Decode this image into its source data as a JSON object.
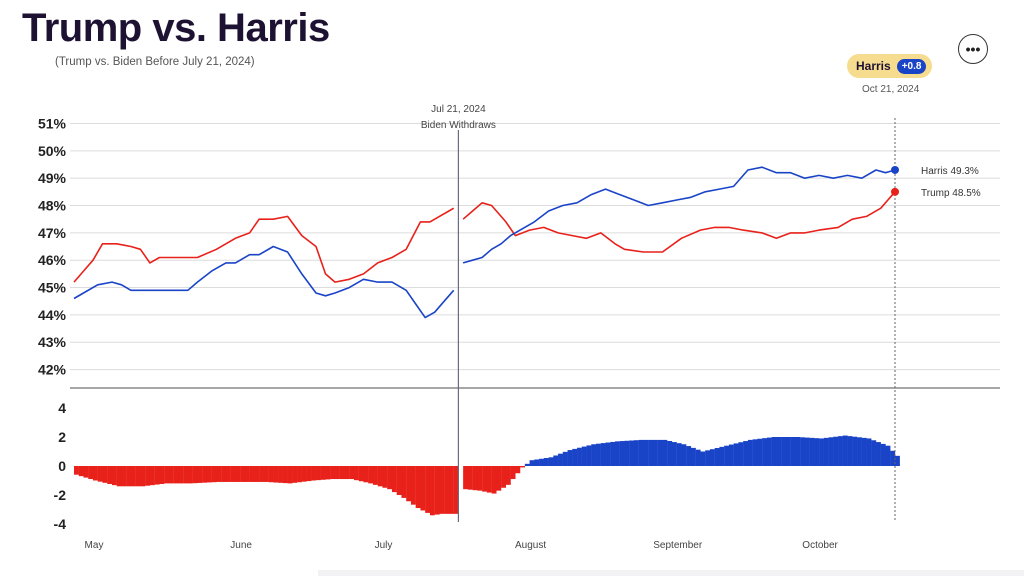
{
  "header": {
    "title": "Trump vs. Harris",
    "subtitle": "(Trump vs. Biden Before July 21, 2024)",
    "more_label": "•••"
  },
  "badge": {
    "name": "Harris",
    "value": "+0.8",
    "date": "Oct 21, 2024"
  },
  "colors": {
    "dem": "#1a44c7",
    "rep": "#e8211b",
    "annotation": "#6a6a80",
    "grid": "#dcdcdc",
    "axis": "#888888"
  },
  "chart_data": [
    {
      "type": "line",
      "x_unit": "date",
      "x_start": "2024-05-01",
      "y_ticks": [
        "51%",
        "50%",
        "49%",
        "48%",
        "47%",
        "46%",
        "45%",
        "44%",
        "43%",
        "42%"
      ],
      "ylim": [
        41.4,
        51.2
      ],
      "x_ticks": [
        {
          "label": "May",
          "date": "2024-05-01"
        },
        {
          "label": "June",
          "date": "2024-06-01"
        },
        {
          "label": "July",
          "date": "2024-07-01"
        },
        {
          "label": "August",
          "date": "2024-08-01"
        },
        {
          "label": "September",
          "date": "2024-09-01"
        },
        {
          "label": "October",
          "date": "2024-10-01"
        }
      ],
      "annotation": {
        "date": "2024-07-21",
        "line1": "Jul 21, 2024",
        "line2": "Biden Withdraws"
      },
      "series": [
        {
          "name": "Trump",
          "end_label": "Trump 48.5%",
          "party": "rep",
          "segments": [
            [
              [
                "2024-05-01",
                45.2
              ],
              [
                "2024-05-03",
                45.6
              ],
              [
                "2024-05-05",
                46.0
              ],
              [
                "2024-05-07",
                46.6
              ],
              [
                "2024-05-10",
                46.6
              ],
              [
                "2024-05-13",
                46.5
              ],
              [
                "2024-05-15",
                46.4
              ],
              [
                "2024-05-17",
                45.9
              ],
              [
                "2024-05-19",
                46.1
              ],
              [
                "2024-05-23",
                46.1
              ],
              [
                "2024-05-27",
                46.1
              ],
              [
                "2024-05-31",
                46.4
              ],
              [
                "2024-06-04",
                46.8
              ],
              [
                "2024-06-07",
                47.0
              ],
              [
                "2024-06-09",
                47.5
              ],
              [
                "2024-06-12",
                47.5
              ],
              [
                "2024-06-15",
                47.6
              ],
              [
                "2024-06-18",
                46.9
              ],
              [
                "2024-06-21",
                46.5
              ],
              [
                "2024-06-23",
                45.5
              ],
              [
                "2024-06-25",
                45.2
              ],
              [
                "2024-06-28",
                45.3
              ],
              [
                "2024-07-01",
                45.5
              ],
              [
                "2024-07-04",
                45.9
              ],
              [
                "2024-07-07",
                46.1
              ],
              [
                "2024-07-10",
                46.4
              ],
              [
                "2024-07-13",
                47.4
              ],
              [
                "2024-07-15",
                47.4
              ],
              [
                "2024-07-17",
                47.6
              ],
              [
                "2024-07-19",
                47.8
              ],
              [
                "2024-07-20",
                47.9
              ]
            ],
            [
              [
                "2024-07-22",
                47.5
              ],
              [
                "2024-07-24",
                47.8
              ],
              [
                "2024-07-26",
                48.1
              ],
              [
                "2024-07-28",
                48.0
              ],
              [
                "2024-07-30",
                47.6
              ],
              [
                "2024-07-31",
                47.4
              ],
              [
                "2024-08-02",
                46.9
              ],
              [
                "2024-08-05",
                47.1
              ],
              [
                "2024-08-08",
                47.2
              ],
              [
                "2024-08-11",
                47.0
              ],
              [
                "2024-08-14",
                46.9
              ],
              [
                "2024-08-17",
                46.8
              ],
              [
                "2024-08-20",
                47.0
              ],
              [
                "2024-08-23",
                46.6
              ],
              [
                "2024-08-25",
                46.4
              ],
              [
                "2024-08-29",
                46.3
              ],
              [
                "2024-09-02",
                46.3
              ],
              [
                "2024-09-06",
                46.8
              ],
              [
                "2024-09-10",
                47.1
              ],
              [
                "2024-09-13",
                47.2
              ],
              [
                "2024-09-16",
                47.2
              ],
              [
                "2024-09-19",
                47.1
              ],
              [
                "2024-09-23",
                47.0
              ],
              [
                "2024-09-26",
                46.8
              ],
              [
                "2024-09-29",
                47.0
              ],
              [
                "2024-10-02",
                47.0
              ],
              [
                "2024-10-05",
                47.1
              ],
              [
                "2024-10-09",
                47.2
              ],
              [
                "2024-10-12",
                47.5
              ],
              [
                "2024-10-15",
                47.6
              ],
              [
                "2024-10-18",
                47.9
              ],
              [
                "2024-10-21",
                48.5
              ]
            ]
          ]
        },
        {
          "name": "Harris",
          "end_label": "Harris 49.3%",
          "party": "dem",
          "segments": [
            [
              [
                "2024-05-01",
                44.6
              ],
              [
                "2024-05-03",
                44.8
              ],
              [
                "2024-05-06",
                45.1
              ],
              [
                "2024-05-09",
                45.2
              ],
              [
                "2024-05-11",
                45.1
              ],
              [
                "2024-05-13",
                44.9
              ],
              [
                "2024-05-17",
                44.9
              ],
              [
                "2024-05-21",
                44.9
              ],
              [
                "2024-05-25",
                44.9
              ],
              [
                "2024-05-27",
                45.2
              ],
              [
                "2024-05-30",
                45.6
              ],
              [
                "2024-06-02",
                45.9
              ],
              [
                "2024-06-04",
                45.9
              ],
              [
                "2024-06-07",
                46.2
              ],
              [
                "2024-06-09",
                46.2
              ],
              [
                "2024-06-12",
                46.5
              ],
              [
                "2024-06-15",
                46.3
              ],
              [
                "2024-06-18",
                45.5
              ],
              [
                "2024-06-21",
                44.8
              ],
              [
                "2024-06-23",
                44.7
              ],
              [
                "2024-06-25",
                44.8
              ],
              [
                "2024-06-28",
                45.0
              ],
              [
                "2024-07-01",
                45.3
              ],
              [
                "2024-07-04",
                45.2
              ],
              [
                "2024-07-07",
                45.2
              ],
              [
                "2024-07-10",
                44.9
              ],
              [
                "2024-07-12",
                44.4
              ],
              [
                "2024-07-14",
                43.9
              ],
              [
                "2024-07-16",
                44.1
              ],
              [
                "2024-07-18",
                44.5
              ],
              [
                "2024-07-20",
                44.9
              ]
            ],
            [
              [
                "2024-07-22",
                45.9
              ],
              [
                "2024-07-24",
                46.0
              ],
              [
                "2024-07-26",
                46.1
              ],
              [
                "2024-07-28",
                46.4
              ],
              [
                "2024-07-30",
                46.6
              ],
              [
                "2024-08-01",
                46.9
              ],
              [
                "2024-08-03",
                47.1
              ],
              [
                "2024-08-06",
                47.4
              ],
              [
                "2024-08-09",
                47.8
              ],
              [
                "2024-08-12",
                48.0
              ],
              [
                "2024-08-15",
                48.1
              ],
              [
                "2024-08-18",
                48.4
              ],
              [
                "2024-08-21",
                48.6
              ],
              [
                "2024-08-24",
                48.4
              ],
              [
                "2024-08-27",
                48.2
              ],
              [
                "2024-08-30",
                48.0
              ],
              [
                "2024-09-02",
                48.1
              ],
              [
                "2024-09-05",
                48.2
              ],
              [
                "2024-09-08",
                48.3
              ],
              [
                "2024-09-11",
                48.5
              ],
              [
                "2024-09-14",
                48.6
              ],
              [
                "2024-09-17",
                48.7
              ],
              [
                "2024-09-20",
                49.3
              ],
              [
                "2024-09-23",
                49.4
              ],
              [
                "2024-09-26",
                49.2
              ],
              [
                "2024-09-29",
                49.2
              ],
              [
                "2024-10-02",
                49.0
              ],
              [
                "2024-10-05",
                49.1
              ],
              [
                "2024-10-08",
                49.0
              ],
              [
                "2024-10-11",
                49.1
              ],
              [
                "2024-10-14",
                49.0
              ],
              [
                "2024-10-17",
                49.3
              ],
              [
                "2024-10-19",
                49.2
              ],
              [
                "2024-10-21",
                49.3
              ]
            ]
          ]
        }
      ]
    },
    {
      "type": "bar",
      "name": "spread",
      "y_ticks": [
        "4",
        "2",
        "0",
        "-2",
        "-4"
      ],
      "ylim": [
        -4,
        4
      ],
      "zero_crossing_date": "2024-08-04",
      "spread_points": [
        [
          "2024-05-01",
          -0.6
        ],
        [
          "2024-05-05",
          -1.0
        ],
        [
          "2024-05-10",
          -1.4
        ],
        [
          "2024-05-15",
          -1.4
        ],
        [
          "2024-05-20",
          -1.2
        ],
        [
          "2024-05-25",
          -1.2
        ],
        [
          "2024-05-31",
          -1.1
        ],
        [
          "2024-06-05",
          -1.1
        ],
        [
          "2024-06-10",
          -1.1
        ],
        [
          "2024-06-15",
          -1.2
        ],
        [
          "2024-06-20",
          -1.0
        ],
        [
          "2024-06-24",
          -0.9
        ],
        [
          "2024-06-28",
          -0.9
        ],
        [
          "2024-07-02",
          -1.2
        ],
        [
          "2024-07-06",
          -1.6
        ],
        [
          "2024-07-09",
          -2.2
        ],
        [
          "2024-07-12",
          -2.9
        ],
        [
          "2024-07-15",
          -3.4
        ],
        [
          "2024-07-17",
          -3.3
        ],
        [
          "2024-07-20",
          -3.3
        ],
        [
          "2024-07-22",
          -1.6
        ],
        [
          "2024-07-25",
          -1.7
        ],
        [
          "2024-07-28",
          -1.9
        ],
        [
          "2024-07-31",
          -1.3
        ],
        [
          "2024-08-03",
          -0.1
        ],
        [
          "2024-08-05",
          0.4
        ],
        [
          "2024-08-09",
          0.6
        ],
        [
          "2024-08-13",
          1.1
        ],
        [
          "2024-08-18",
          1.5
        ],
        [
          "2024-08-23",
          1.7
        ],
        [
          "2024-08-28",
          1.8
        ],
        [
          "2024-09-02",
          1.8
        ],
        [
          "2024-09-06",
          1.5
        ],
        [
          "2024-09-10",
          1.0
        ],
        [
          "2024-09-15",
          1.4
        ],
        [
          "2024-09-20",
          1.8
        ],
        [
          "2024-09-25",
          2.0
        ],
        [
          "2024-09-30",
          2.0
        ],
        [
          "2024-10-05",
          1.9
        ],
        [
          "2024-10-10",
          2.1
        ],
        [
          "2024-10-15",
          1.9
        ],
        [
          "2024-10-19",
          1.4
        ],
        [
          "2024-10-21",
          0.7
        ]
      ]
    }
  ]
}
